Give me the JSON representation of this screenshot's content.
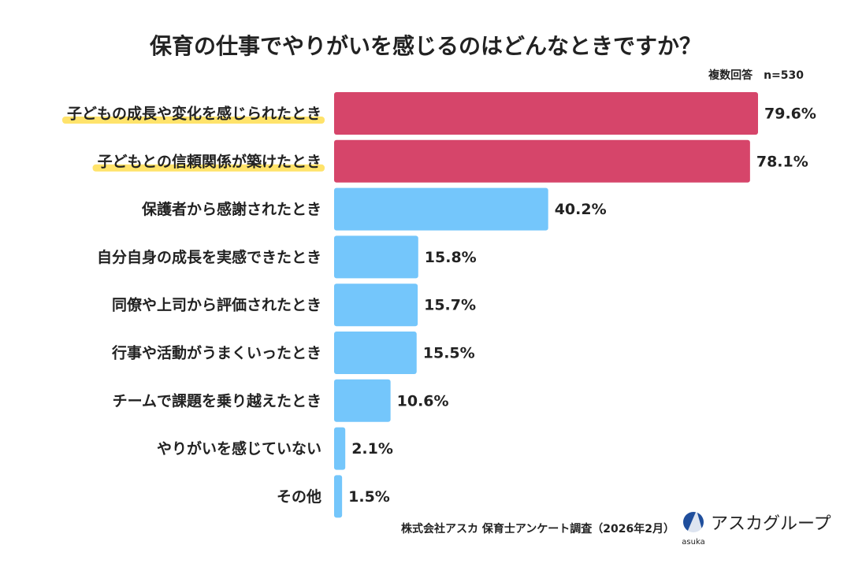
{
  "chart_data": {
    "type": "bar",
    "orientation": "horizontal",
    "title": "保育の仕事でやりがいを感じるのはどんなときですか？",
    "note": "複数回答　n=530",
    "categories": [
      "子どもの成長や変化を感じられたとき",
      "子どもとの信頼関係が築けたとき",
      "保護者から感謝されたとき",
      "自分自身の成長を実感できたとき",
      "同僚や上司から評価されたとき",
      "行事や活動がうまくいったとき",
      "チームで課題を乗り越えたとき",
      "やりがいを感じていない",
      "その他"
    ],
    "values": [
      79.6,
      78.1,
      40.2,
      15.8,
      15.7,
      15.5,
      10.6,
      2.1,
      1.5
    ],
    "value_labels": [
      "79.6%",
      "78.1%",
      "40.2%",
      "15.8%",
      "15.7%",
      "15.5%",
      "10.6%",
      "2.1%",
      "1.5%"
    ],
    "colors": [
      "#d6456a",
      "#d6456a",
      "#74c6fb",
      "#74c6fb",
      "#74c6fb",
      "#74c6fb",
      "#74c6fb",
      "#74c6fb",
      "#74c6fb"
    ],
    "accent_color": "#d6456a",
    "source": "株式会社アスカ 保育士アンケート調査（2026年2月）",
    "logo": {
      "small": "asuka",
      "text": "アスカグループ"
    }
  }
}
